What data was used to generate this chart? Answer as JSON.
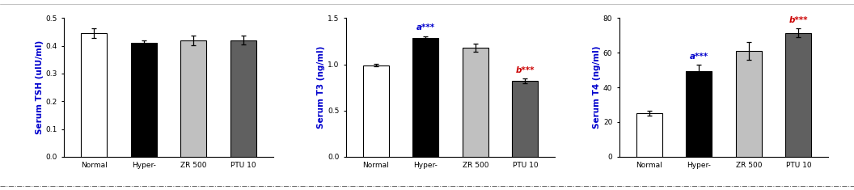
{
  "chart1": {
    "ylabel": "Serum TSH (uIU/ml)",
    "categories": [
      "Normal",
      "Hyper-",
      "ZR 500",
      "PTU 10"
    ],
    "values": [
      0.445,
      0.41,
      0.42,
      0.42
    ],
    "errors": [
      0.018,
      0.01,
      0.018,
      0.016
    ],
    "bar_colors": [
      "#ffffff",
      "#000000",
      "#c0c0c0",
      "#606060"
    ],
    "ylim": [
      0,
      0.5
    ],
    "yticks": [
      0.0,
      0.1,
      0.2,
      0.3,
      0.4,
      0.5
    ],
    "annotations": []
  },
  "chart2": {
    "ylabel": "Serum T3 (ng/ml)",
    "categories": [
      "Normal",
      "Hyper-",
      "ZR 500",
      "PTU 10"
    ],
    "values": [
      0.99,
      1.28,
      1.18,
      0.82
    ],
    "errors": [
      0.015,
      0.025,
      0.045,
      0.025
    ],
    "bar_colors": [
      "#ffffff",
      "#000000",
      "#c0c0c0",
      "#606060"
    ],
    "ylim": [
      0,
      1.5
    ],
    "yticks": [
      0.0,
      0.5,
      1.0,
      1.5
    ],
    "annotations": [
      {
        "bar_idx": 1,
        "text": "a***",
        "color": "#0000cc"
      },
      {
        "bar_idx": 3,
        "text": "b***",
        "color": "#cc0000"
      }
    ]
  },
  "chart3": {
    "ylabel": "Serum T4 (ng/ml)",
    "categories": [
      "Normal",
      "Hyper-",
      "ZR 500",
      "PTU 10"
    ],
    "values": [
      25.0,
      49.5,
      61.0,
      71.5
    ],
    "errors": [
      1.5,
      3.5,
      5.0,
      2.5
    ],
    "bar_colors": [
      "#ffffff",
      "#000000",
      "#c0c0c0",
      "#606060"
    ],
    "ylim": [
      0,
      80
    ],
    "yticks": [
      0,
      20,
      40,
      60,
      80
    ],
    "annotations": [
      {
        "bar_idx": 1,
        "text": "a***",
        "color": "#0000cc"
      },
      {
        "bar_idx": 3,
        "text": "b***",
        "color": "#cc0000"
      }
    ]
  },
  "label_color": "#0000cd",
  "tick_label_fontsize": 6.5,
  "axis_label_fontsize": 7.5,
  "annotation_fontsize": 7.5,
  "bar_width": 0.52,
  "figure_bg": "#ffffff",
  "border_color": "#000000",
  "bottom_line_color": "#666666",
  "errorbar_capsize": 2,
  "errorbar_linewidth": 0.9,
  "errorbar_color": "#000000"
}
